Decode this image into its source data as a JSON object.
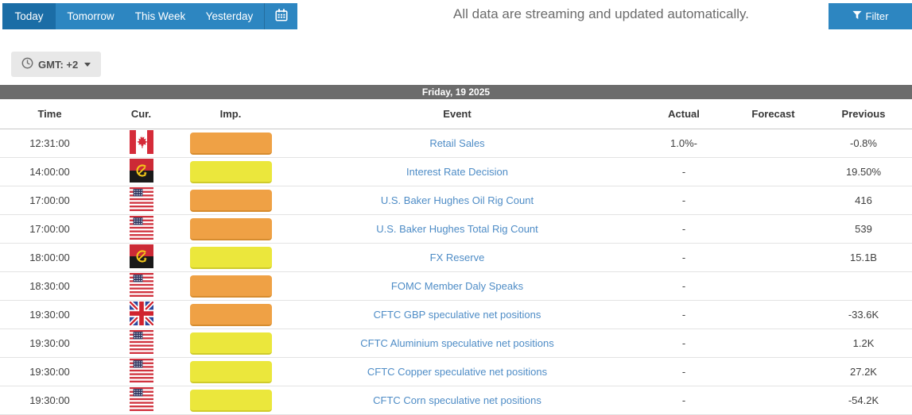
{
  "tabs": {
    "items": [
      {
        "label": "Today",
        "active": true
      },
      {
        "label": "Tomorrow",
        "active": false
      },
      {
        "label": "This Week",
        "active": false
      },
      {
        "label": "Yesterday",
        "active": false
      }
    ]
  },
  "header": {
    "message": "All data are streaming and updated automatically.",
    "filter_label": "Filter"
  },
  "gmt": {
    "label": "GMT: +2"
  },
  "icons": {
    "calendar": "calendar-icon",
    "clock": "clock-icon",
    "filter": "filter-funnel-icon",
    "caret": "chevron-down-icon"
  },
  "colors": {
    "tab_active": "#1b6da6",
    "tab_inactive": "#2d86c1",
    "date_bar": "#6c6c6c",
    "importance_orange": "#efa145",
    "importance_yellow": "#ebe73c",
    "event_link": "#4e8cc6"
  },
  "table": {
    "date_header": "Friday, 19 2025",
    "columns": [
      "Time",
      "Cur.",
      "Imp.",
      "Event",
      "Actual",
      "Forecast",
      "Previous"
    ],
    "rows": [
      {
        "time": "12:31:00",
        "country": "canada",
        "importance": "orange",
        "event": "Retail Sales",
        "actual": "1.0%-",
        "forecast": "",
        "previous": "-0.8%"
      },
      {
        "time": "14:00:00",
        "country": "angola",
        "importance": "yellow",
        "event": "Interest Rate Decision",
        "actual": "-",
        "forecast": "",
        "previous": "19.50%"
      },
      {
        "time": "17:00:00",
        "country": "usa",
        "importance": "orange",
        "event": "U.S. Baker Hughes Oil Rig Count",
        "actual": "-",
        "forecast": "",
        "previous": "416"
      },
      {
        "time": "17:00:00",
        "country": "usa",
        "importance": "orange",
        "event": "U.S. Baker Hughes Total Rig Count",
        "actual": "-",
        "forecast": "",
        "previous": "539"
      },
      {
        "time": "18:00:00",
        "country": "angola",
        "importance": "yellow",
        "event": "FX Reserve",
        "actual": "-",
        "forecast": "",
        "previous": "15.1B"
      },
      {
        "time": "18:30:00",
        "country": "usa",
        "importance": "orange",
        "event": "FOMC Member Daly Speaks",
        "actual": "-",
        "forecast": "",
        "previous": ""
      },
      {
        "time": "19:30:00",
        "country": "uk",
        "importance": "orange",
        "event": "CFTC GBP speculative net positions",
        "actual": "-",
        "forecast": "",
        "previous": "-33.6K"
      },
      {
        "time": "19:30:00",
        "country": "usa",
        "importance": "yellow",
        "event": "CFTC Aluminium speculative net positions",
        "actual": "-",
        "forecast": "",
        "previous": "1.2K"
      },
      {
        "time": "19:30:00",
        "country": "usa",
        "importance": "yellow",
        "event": "CFTC Copper speculative net positions",
        "actual": "-",
        "forecast": "",
        "previous": "27.2K"
      },
      {
        "time": "19:30:00",
        "country": "usa",
        "importance": "yellow",
        "event": "CFTC Corn speculative net positions",
        "actual": "-",
        "forecast": "",
        "previous": "-54.2K"
      }
    ]
  }
}
